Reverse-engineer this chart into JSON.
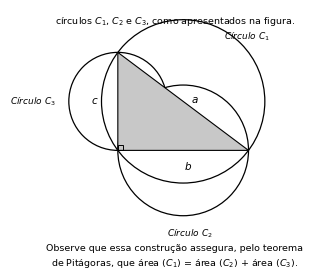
{
  "title_top": "círculos $C_1$, $C_2$ e $C_3$, como apresentados na figura.",
  "bottom_text_1": "Observe que essa construção assegura, pelo teorema",
  "bottom_text_2": "de Pitágoras, que área $(C_1)$ = área $(C_2)$ + área $(C_3)$.",
  "label_C1": "Círculo $C_1$",
  "label_C2": "Círculo $C_2$",
  "label_C3": "Círculo $C_3$",
  "label_a": "$a$",
  "label_b": "$b$",
  "label_c": "$c$",
  "triangle_color": "#c8c8c8",
  "circle_color": "#000000",
  "bg_color": "#ffffff"
}
